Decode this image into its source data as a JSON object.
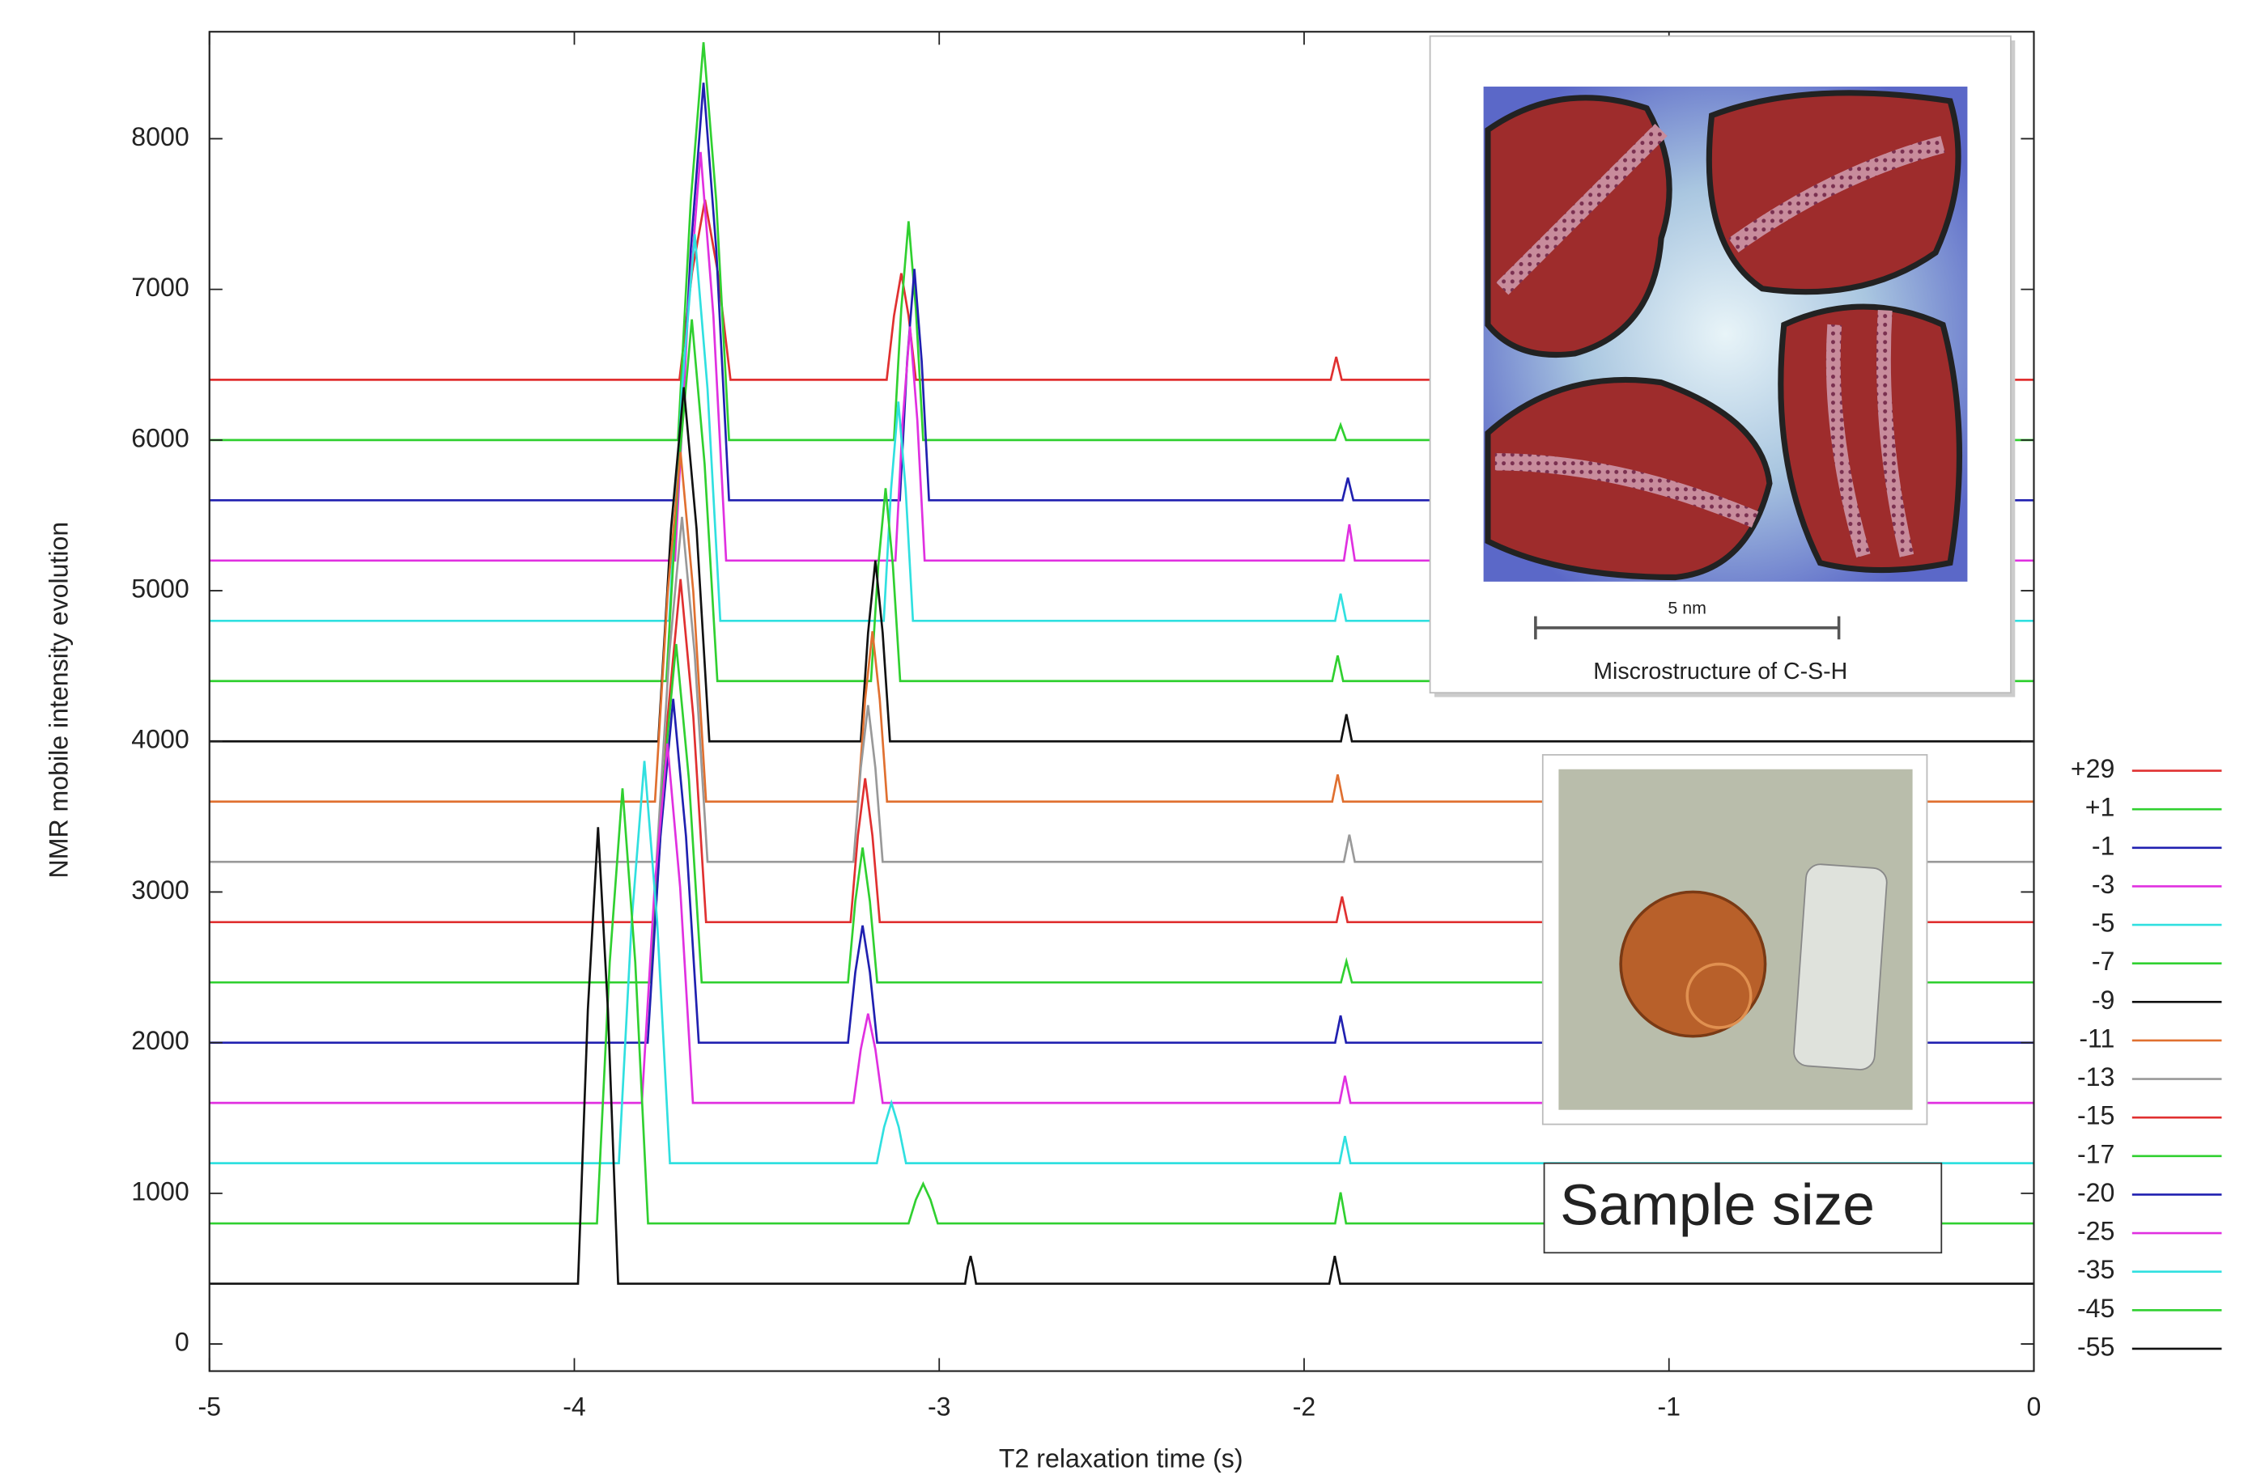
{
  "chart_data": {
    "type": "line",
    "xlabel": "T2 relaxation time (s)",
    "ylabel": "NMR mobile intensity evolution",
    "xlim": [
      -5,
      0
    ],
    "ylim": [
      -180,
      8710
    ],
    "xticks": [
      -5,
      -4,
      -3,
      -2,
      -1,
      0
    ],
    "yticks": [
      0,
      1000,
      2000,
      3000,
      4000,
      5000,
      6000,
      7000,
      8000
    ],
    "legend": "right",
    "annotations": [
      "5 nm",
      "Miscrostructure of C-S-H",
      "Sample size"
    ],
    "series": [
      {
        "name": "+29",
        "color": "#e03030",
        "x": [
          -5,
          -3.712,
          -3.677,
          -3.642,
          -3.607,
          -3.572,
          -3.144,
          -3.124,
          -3.104,
          -3.084,
          -3.064,
          -1.927,
          -1.912,
          -1.897,
          0
        ],
        "values": [
          6400,
          6400,
          7117,
          7595,
          7117,
          6400,
          6400,
          6824,
          7107,
          6824,
          6400,
          6400,
          6552,
          6400,
          6400
        ]
      },
      {
        "name": "+1",
        "color": "#30d030",
        "x": [
          -5,
          -3.716,
          -3.681,
          -3.646,
          -3.611,
          -3.576,
          -3.124,
          -3.104,
          -3.084,
          -3.064,
          -3.044,
          -1.915,
          -1.9,
          -1.885,
          0
        ],
        "values": [
          6000,
          6000,
          7584,
          8640,
          7584,
          6000,
          6000,
          6871,
          7452,
          6871,
          6000,
          6000,
          6100,
          6000,
          6000
        ]
      },
      {
        "name": "-1",
        "color": "#2020b0",
        "x": [
          -5,
          -3.716,
          -3.681,
          -3.646,
          -3.611,
          -3.576,
          -3.108,
          -3.088,
          -3.068,
          -3.048,
          -3.028,
          -1.895,
          -1.88,
          -1.865,
          0
        ],
        "values": [
          5600,
          5600,
          7263,
          8372,
          7263,
          5600,
          5600,
          6522,
          7136,
          6522,
          5600,
          5600,
          5750,
          5600,
          5600
        ]
      },
      {
        "name": "-3",
        "color": "#e030e0",
        "x": [
          -5,
          -3.724,
          -3.689,
          -3.654,
          -3.619,
          -3.584,
          -3.12,
          -3.1,
          -3.08,
          -3.06,
          -3.04,
          -1.891,
          -1.876,
          -1.861,
          0
        ],
        "values": [
          5200,
          5200,
          6827,
          7912,
          6827,
          5200,
          5200,
          6132,
          6753,
          6132,
          5200,
          5200,
          5440,
          5200,
          5200
        ]
      },
      {
        "name": "-5",
        "color": "#30e0e0",
        "x": [
          -5,
          -3.74,
          -3.705,
          -3.67,
          -3.635,
          -3.6,
          -3.152,
          -3.132,
          -3.112,
          -3.092,
          -3.072,
          -1.915,
          -1.9,
          -1.885,
          0
        ],
        "values": [
          4800,
          4800,
          6340,
          7366,
          6340,
          4800,
          4800,
          5673,
          6255,
          5673,
          4800,
          4800,
          4980,
          4800,
          4800
        ]
      },
      {
        "name": "-7",
        "color": "#30d030",
        "x": [
          -5,
          -3.748,
          -3.713,
          -3.678,
          -3.643,
          -3.608,
          -3.187,
          -3.167,
          -3.147,
          -3.127,
          -3.107,
          -1.923,
          -1.908,
          -1.893,
          0
        ],
        "values": [
          4400,
          4400,
          5841,
          6801,
          5841,
          4400,
          4400,
          5168,
          5680,
          5168,
          4400,
          4400,
          4570,
          4400,
          4400
        ]
      },
      {
        "name": "-9",
        "color": "#111111",
        "x": [
          -5,
          -3.77,
          -3.735,
          -3.7,
          -3.665,
          -3.63,
          -3.215,
          -3.195,
          -3.175,
          -3.155,
          -3.135,
          -1.899,
          -1.884,
          -1.869,
          0
        ],
        "values": [
          4000,
          4000,
          5410,
          6350,
          5410,
          4000,
          4000,
          4720,
          5200,
          4720,
          4000,
          4000,
          4180,
          4000,
          4000
        ]
      },
      {
        "name": "-11",
        "color": "#e07030",
        "x": [
          -5,
          -3.779,
          -3.744,
          -3.709,
          -3.674,
          -3.639,
          -3.223,
          -3.203,
          -3.183,
          -3.163,
          -3.143,
          -1.923,
          -1.908,
          -1.893,
          0
        ],
        "values": [
          3600,
          3600,
          4992,
          5920,
          4992,
          3600,
          3600,
          4278,
          4730,
          4278,
          3600,
          3600,
          3780,
          3600,
          3600
        ]
      },
      {
        "name": "-13",
        "color": "#999999",
        "x": [
          -5,
          -3.775,
          -3.74,
          -3.705,
          -3.67,
          -3.635,
          -3.235,
          -3.215,
          -3.195,
          -3.175,
          -3.155,
          -1.891,
          -1.876,
          -1.861,
          0
        ],
        "values": [
          3200,
          3200,
          4574,
          5490,
          4574,
          3200,
          3200,
          3824,
          4240,
          3824,
          3200,
          3200,
          3380,
          3200,
          3200
        ]
      },
      {
        "name": "-15",
        "color": "#e03030",
        "x": [
          -5,
          -3.779,
          -3.744,
          -3.709,
          -3.674,
          -3.639,
          -3.243,
          -3.223,
          -3.203,
          -3.183,
          -3.163,
          -1.911,
          -1.896,
          -1.881,
          0
        ],
        "values": [
          2800,
          2800,
          4166,
          5077,
          4166,
          2800,
          2800,
          3373,
          3755,
          3373,
          2800,
          2800,
          2970,
          2800,
          2800
        ]
      },
      {
        "name": "-17",
        "color": "#30d030",
        "x": [
          -5,
          -3.791,
          -3.756,
          -3.721,
          -3.686,
          -3.651,
          -3.25,
          -3.23,
          -3.21,
          -3.19,
          -3.17,
          -1.899,
          -1.884,
          -1.869,
          0
        ],
        "values": [
          2400,
          2400,
          3748,
          4646,
          3748,
          2400,
          2400,
          2937,
          3295,
          2937,
          2400,
          2400,
          2540,
          2400,
          2400
        ]
      },
      {
        "name": "-20",
        "color": "#2020b0",
        "x": [
          -5,
          -3.799,
          -3.764,
          -3.729,
          -3.694,
          -3.659,
          -3.25,
          -3.23,
          -3.21,
          -3.19,
          -3.17,
          -1.915,
          -1.9,
          -1.885,
          0
        ],
        "values": [
          2000,
          2000,
          3369,
          4282,
          3369,
          2000,
          2000,
          2467,
          2778,
          2467,
          2000,
          2000,
          2180,
          2000,
          2000
        ]
      },
      {
        "name": "-25",
        "color": "#e030e0",
        "x": [
          -5,
          -3.815,
          -3.78,
          -3.745,
          -3.71,
          -3.675,
          -3.235,
          -3.215,
          -3.195,
          -3.175,
          -3.155,
          -1.903,
          -1.888,
          -1.873,
          0
        ],
        "values": [
          1600,
          1600,
          3031,
          3985,
          3031,
          1600,
          1600,
          1956,
          2193,
          1956,
          1600,
          1600,
          1780,
          1600,
          1600
        ]
      },
      {
        "name": "-35",
        "color": "#30e0e0",
        "x": [
          -5,
          -3.878,
          -3.843,
          -3.808,
          -3.773,
          -3.738,
          -3.171,
          -3.151,
          -3.131,
          -3.111,
          -3.091,
          -1.903,
          -1.888,
          -1.873,
          0
        ],
        "values": [
          1200,
          1200,
          2802,
          3870,
          2802,
          1200,
          1200,
          1440,
          1600,
          1440,
          1200,
          1200,
          1380,
          1200,
          1200
        ]
      },
      {
        "name": "-45",
        "color": "#30d030",
        "x": [
          -5,
          -3.938,
          -3.903,
          -3.868,
          -3.833,
          -3.798,
          -3.084,
          -3.064,
          -3.044,
          -3.024,
          -3.004,
          -1.915,
          -1.9,
          -1.885,
          0
        ],
        "values": [
          800,
          800,
          2533,
          3688,
          2533,
          800,
          800,
          958,
          1063,
          958,
          800,
          800,
          1006,
          800,
          800
        ]
      },
      {
        "name": "-55",
        "color": "#111111",
        "x": [
          -5,
          -3.99,
          -3.963,
          -3.935,
          -3.908,
          -3.88,
          -2.929,
          -2.922,
          -2.914,
          -2.907,
          -2.899,
          -1.931,
          -1.916,
          -1.901,
          0
        ],
        "values": [
          400,
          400,
          2218,
          3430,
          2218,
          400,
          400,
          510,
          584,
          510,
          400,
          400,
          584,
          400,
          400
        ]
      }
    ]
  }
}
